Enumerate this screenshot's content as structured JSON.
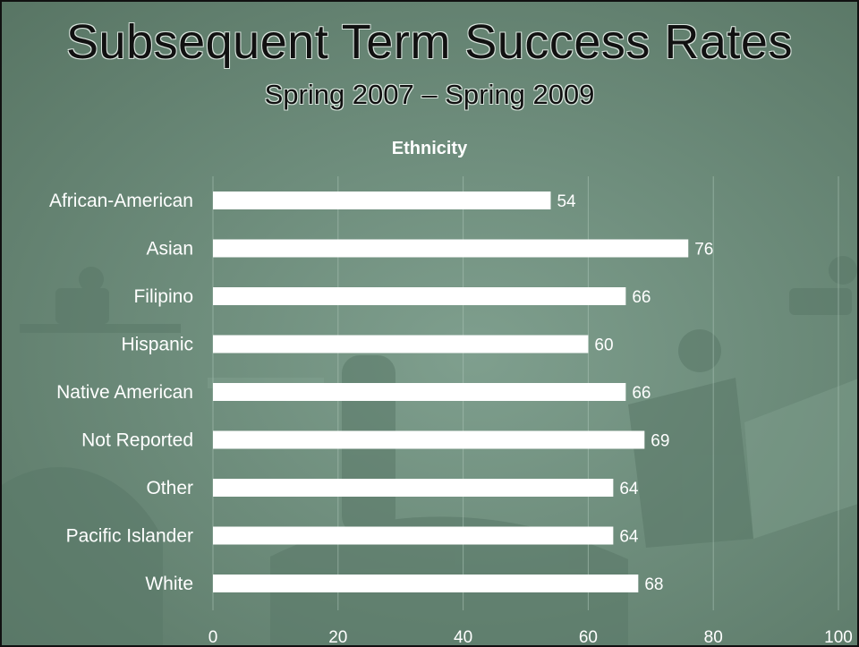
{
  "slide": {
    "title": "Subsequent Term Success Rates",
    "subtitle": "Spring 2007 – Spring 2009"
  },
  "colors": {
    "background": "#6d8c7b",
    "bar": "#ffffff",
    "text": "#ffffff",
    "title": "#111111"
  },
  "chart_data": {
    "type": "bar",
    "orientation": "horizontal",
    "title": "Ethnicity",
    "categories": [
      "African-American",
      "Asian",
      "Filipino",
      "Hispanic",
      "Native American",
      "Not Reported",
      "Other",
      "Pacific Islander",
      "White"
    ],
    "values": [
      54,
      76,
      66,
      60,
      66,
      69,
      64,
      64,
      68
    ],
    "data_labels": [
      "54",
      "76",
      "66",
      "60",
      "66",
      "69",
      "64",
      "64",
      "68"
    ],
    "xlim": [
      0,
      100
    ],
    "xticks": [
      0,
      20,
      40,
      60,
      80,
      100
    ],
    "xtick_labels": [
      "0",
      "20",
      "40",
      "60",
      "80",
      "100"
    ],
    "gridlines": true,
    "legend": "none"
  }
}
